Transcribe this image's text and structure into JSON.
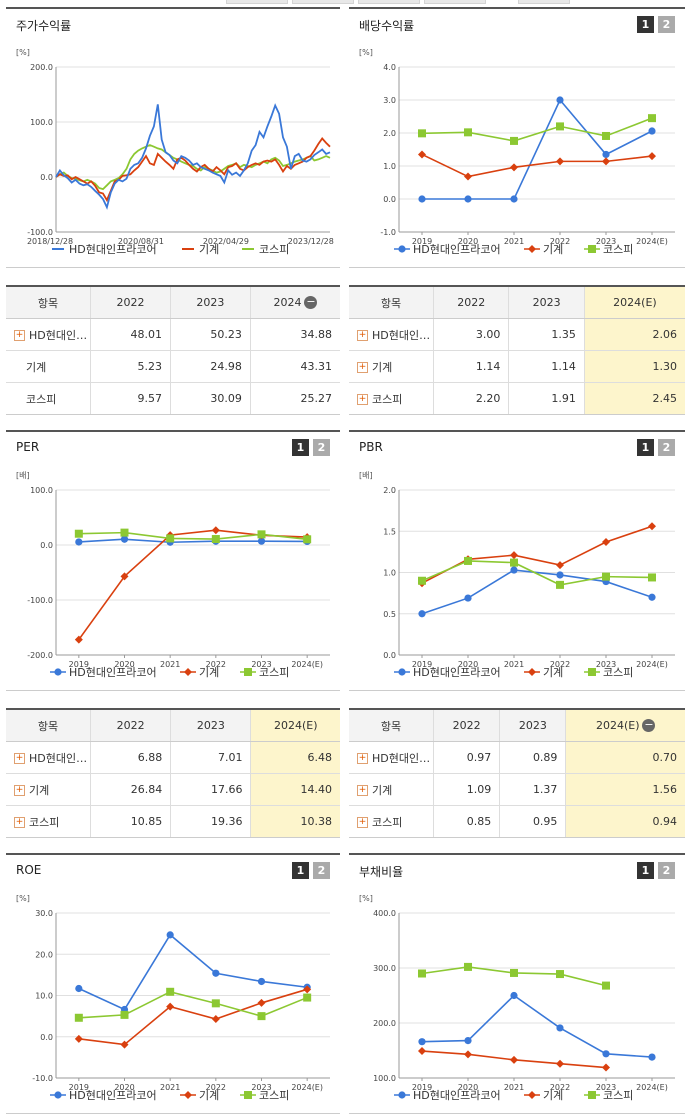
{
  "panels": {
    "returns": {
      "title": "주가수익률"
    },
    "dividend": {
      "title": "배당수익률",
      "btn1": "1",
      "btn2": "2"
    },
    "per": {
      "title": "PER",
      "btn1": "1",
      "btn2": "2"
    },
    "pbr": {
      "title": "PBR",
      "btn1": "1",
      "btn2": "2"
    },
    "roe": {
      "title": "ROE",
      "btn1": "1",
      "btn2": "2"
    },
    "debt": {
      "title": "부채비율",
      "btn1": "1",
      "btn2": "2"
    }
  },
  "tables": {
    "returns": {
      "headers": [
        "항목",
        "2022",
        "2023",
        "2024"
      ],
      "rows": [
        {
          "name": "HD현대인…",
          "v1": "48.01",
          "v2": "50.23",
          "v3": "34.88",
          "expand": true
        },
        {
          "name": "기계",
          "v1": "5.23",
          "v2": "24.98",
          "v3": "43.31",
          "expand": false
        },
        {
          "name": "코스피",
          "v1": "9.57",
          "v2": "30.09",
          "v3": "25.27",
          "expand": false
        }
      ]
    },
    "dividend": {
      "headers": [
        "항목",
        "2022",
        "2023",
        "2024(E)"
      ],
      "rows": [
        {
          "name": "HD현대인…",
          "v1": "3.00",
          "v2": "1.35",
          "v3": "2.06",
          "expand": true
        },
        {
          "name": "기계",
          "v1": "1.14",
          "v2": "1.14",
          "v3": "1.30",
          "expand": true
        },
        {
          "name": "코스피",
          "v1": "2.20",
          "v2": "1.91",
          "v3": "2.45",
          "expand": true
        }
      ]
    },
    "per": {
      "headers": [
        "항목",
        "2022",
        "2023",
        "2024(E)"
      ],
      "rows": [
        {
          "name": "HD현대인…",
          "v1": "6.88",
          "v2": "7.01",
          "v3": "6.48",
          "expand": true
        },
        {
          "name": "기계",
          "v1": "26.84",
          "v2": "17.66",
          "v3": "14.40",
          "expand": true
        },
        {
          "name": "코스피",
          "v1": "10.85",
          "v2": "19.36",
          "v3": "10.38",
          "expand": true
        }
      ]
    },
    "pbr": {
      "headers": [
        "항목",
        "2022",
        "2023",
        "2024(E)"
      ],
      "rows": [
        {
          "name": "HD현대인…",
          "v1": "0.97",
          "v2": "0.89",
          "v3": "0.70",
          "expand": true
        },
        {
          "name": "기계",
          "v1": "1.09",
          "v2": "1.37",
          "v3": "1.56",
          "expand": true
        },
        {
          "name": "코스피",
          "v1": "0.85",
          "v2": "0.95",
          "v3": "0.94",
          "expand": true
        }
      ]
    }
  },
  "colors": {
    "company": "#3a78d8",
    "machine": "#d9400f",
    "kospi": "#8cc832",
    "grid": "#e0e0e0",
    "axis": "#999999"
  },
  "chart_data": [
    {
      "id": "returns",
      "type": "line",
      "unit": "[%]",
      "ylim": [
        -100,
        200
      ],
      "yticks": [
        "200.0",
        "100.0",
        "0.0",
        "-100.0"
      ],
      "xlabels": [
        "2018/12/28",
        "2020/08/31",
        "2022/04/29",
        "2023/12/28"
      ],
      "legend": [
        "HD현대인프라코어",
        "기계",
        "코스피"
      ],
      "series": [
        {
          "name": "HD현대인프라코어",
          "key": "company",
          "values": [
            0,
            12,
            3,
            -2,
            -10,
            -5,
            -12,
            -15,
            -13,
            -18,
            -25,
            -32,
            -40,
            -55,
            -28,
            -12,
            -5,
            -8,
            -3,
            15,
            22,
            25,
            35,
            52,
            75,
            92,
            132,
            68,
            45,
            40,
            30,
            25,
            38,
            35,
            30,
            22,
            25,
            18,
            15,
            12,
            8,
            5,
            2,
            -10,
            12,
            4,
            8,
            2,
            12,
            25,
            48,
            58,
            82,
            72,
            92,
            110,
            130,
            115,
            72,
            55,
            15,
            38,
            42,
            30,
            28,
            32,
            40,
            45,
            50,
            42,
            45
          ]
        },
        {
          "name": "기계",
          "key": "machine",
          "values": [
            0,
            5,
            2,
            3,
            -4,
            0,
            -4,
            -8,
            -12,
            -8,
            -16,
            -28,
            -30,
            -42,
            -25,
            -8,
            -5,
            2,
            3,
            5,
            12,
            18,
            28,
            38,
            25,
            22,
            42,
            35,
            28,
            22,
            15,
            32,
            35,
            30,
            22,
            15,
            10,
            18,
            22,
            15,
            10,
            18,
            12,
            5,
            18,
            20,
            25,
            15,
            12,
            18,
            22,
            25,
            22,
            28,
            30,
            28,
            32,
            22,
            10,
            20,
            15,
            22,
            25,
            28,
            35,
            38,
            48,
            60,
            70,
            62,
            55
          ]
        },
        {
          "name": "코스피",
          "key": "kospi",
          "values": [
            0,
            5,
            8,
            2,
            -2,
            -3,
            -6,
            -8,
            -5,
            -8,
            -12,
            -20,
            -22,
            -15,
            -8,
            -5,
            -2,
            5,
            15,
            32,
            42,
            48,
            52,
            55,
            58,
            55,
            52,
            50,
            45,
            40,
            35,
            32,
            28,
            25,
            22,
            20,
            15,
            12,
            18,
            15,
            12,
            8,
            10,
            15,
            20,
            22,
            25,
            18,
            22,
            20,
            18,
            22,
            25,
            28,
            25,
            32,
            35,
            30,
            20,
            22,
            25,
            28,
            30,
            32,
            35,
            38,
            30,
            32,
            35,
            38,
            35
          ]
        }
      ]
    },
    {
      "id": "dividend",
      "type": "line",
      "unit": "[%]",
      "ylim": [
        -1,
        4
      ],
      "yticks": [
        "4.0",
        "3.0",
        "2.0",
        "1.0",
        "0.0",
        "-1.0"
      ],
      "categories": [
        "2019",
        "2020",
        "2021",
        "2022",
        "2023",
        "2024(E)"
      ],
      "legend": [
        "HD현대인프라코어",
        "기계",
        "코스피"
      ],
      "series": [
        {
          "name": "HD현대인프라코어",
          "key": "company",
          "values": [
            0.0,
            0.0,
            0.0,
            3.0,
            1.35,
            2.06
          ]
        },
        {
          "name": "기계",
          "key": "machine",
          "values": [
            1.35,
            0.68,
            0.96,
            1.14,
            1.14,
            1.3
          ]
        },
        {
          "name": "코스피",
          "key": "kospi",
          "values": [
            1.99,
            2.02,
            1.76,
            2.2,
            1.91,
            2.45
          ]
        }
      ]
    },
    {
      "id": "per",
      "type": "line",
      "unit": "[배]",
      "ylim": [
        -200,
        100
      ],
      "yticks": [
        "100.0",
        "0.0",
        "-100.0",
        "-200.0"
      ],
      "categories": [
        "2019",
        "2020",
        "2021",
        "2022",
        "2023",
        "2024(E)"
      ],
      "legend": [
        "HD현대인프라코어",
        "기계",
        "코스피"
      ],
      "series": [
        {
          "name": "HD현대인프라코어",
          "key": "company",
          "values": [
            5.5,
            10.5,
            5.0,
            6.88,
            7.01,
            6.48
          ]
        },
        {
          "name": "기계",
          "key": "machine",
          "values": [
            -172,
            -57,
            18,
            26.84,
            17.66,
            14.4
          ]
        },
        {
          "name": "코스피",
          "key": "kospi",
          "values": [
            20.5,
            22.5,
            12.0,
            10.85,
            19.36,
            10.38
          ]
        }
      ]
    },
    {
      "id": "pbr",
      "type": "line",
      "unit": "[배]",
      "ylim": [
        0,
        2
      ],
      "yticks": [
        "2.0",
        "1.5",
        "1.0",
        "0.5",
        "0.0"
      ],
      "categories": [
        "2019",
        "2020",
        "2021",
        "2022",
        "2023",
        "2024(E)"
      ],
      "legend": [
        "HD현대인프라코어",
        "기계",
        "코스피"
      ],
      "series": [
        {
          "name": "HD현대인프라코어",
          "key": "company",
          "values": [
            0.5,
            0.69,
            1.03,
            0.97,
            0.89,
            0.7
          ]
        },
        {
          "name": "기계",
          "key": "machine",
          "values": [
            0.87,
            1.16,
            1.21,
            1.09,
            1.37,
            1.56
          ]
        },
        {
          "name": "코스피",
          "key": "kospi",
          "values": [
            0.9,
            1.14,
            1.12,
            0.85,
            0.95,
            0.94
          ]
        }
      ]
    },
    {
      "id": "roe",
      "type": "line",
      "unit": "[%]",
      "ylim": [
        -10,
        30
      ],
      "yticks": [
        "30.0",
        "20.0",
        "10.0",
        "0.0",
        "-10.0"
      ],
      "categories": [
        "2019",
        "2020",
        "2021",
        "2022",
        "2023",
        "2024(E)"
      ],
      "legend": [
        "HD현대인프라코어",
        "기계",
        "코스피"
      ],
      "series": [
        {
          "name": "HD현대인프라코어",
          "key": "company",
          "values": [
            11.7,
            6.6,
            24.7,
            15.4,
            13.4,
            12.0
          ]
        },
        {
          "name": "기계",
          "key": "machine",
          "values": [
            -0.5,
            -1.9,
            7.3,
            4.3,
            8.2,
            11.5
          ]
        },
        {
          "name": "코스피",
          "key": "kospi",
          "values": [
            4.6,
            5.3,
            10.9,
            8.1,
            5.0,
            9.5
          ]
        }
      ]
    },
    {
      "id": "debt",
      "type": "line",
      "unit": "[%]",
      "ylim": [
        100,
        400
      ],
      "yticks": [
        "400.0",
        "300.0",
        "200.0",
        "100.0"
      ],
      "categories": [
        "2019",
        "2020",
        "2021",
        "2022",
        "2023",
        "2024(E)"
      ],
      "legend": [
        "HD현대인프라코어",
        "기계",
        "코스피"
      ],
      "series": [
        {
          "name": "HD현대인프라코어",
          "key": "company",
          "values": [
            166,
            168,
            250,
            191,
            144,
            138
          ]
        },
        {
          "name": "기계",
          "key": "machine",
          "values": [
            149,
            143,
            133,
            126,
            119,
            null
          ]
        },
        {
          "name": "코스피",
          "key": "kospi",
          "values": [
            290,
            302,
            291,
            289,
            268,
            null
          ]
        }
      ]
    }
  ]
}
